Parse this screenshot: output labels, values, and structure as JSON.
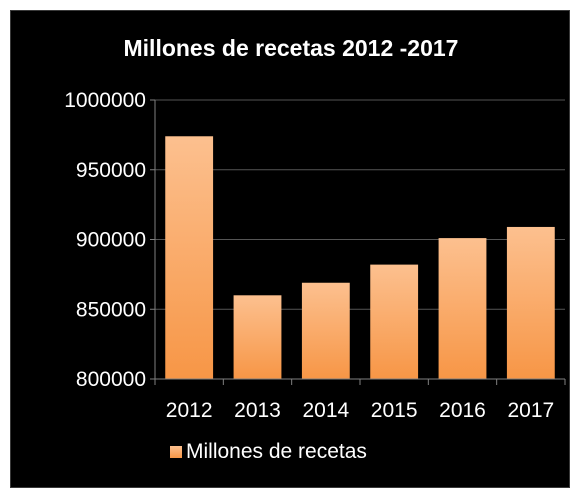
{
  "chart_data": {
    "type": "bar",
    "title": "Millones de recetas 2012 -2017",
    "categories": [
      "2012",
      "2013",
      "2014",
      "2015",
      "2016",
      "2017"
    ],
    "series": [
      {
        "name": "Millones de recetas",
        "values": [
          974000,
          860000,
          869000,
          882000,
          901000,
          909000
        ]
      }
    ],
    "ylim": [
      800000,
      1000000
    ],
    "yticks": [
      800000,
      850000,
      900000,
      950000,
      1000000
    ],
    "ytick_labels": [
      "800000",
      "850000",
      "900000",
      "950000",
      "1000000"
    ],
    "grid": true,
    "legend": "bottom",
    "colors": {
      "background": "#000000",
      "gridline": "#555555",
      "axis": "#808080",
      "text": "#ffffff",
      "bar_top": "#fcc08f",
      "bar_bottom": "#f79646"
    }
  }
}
